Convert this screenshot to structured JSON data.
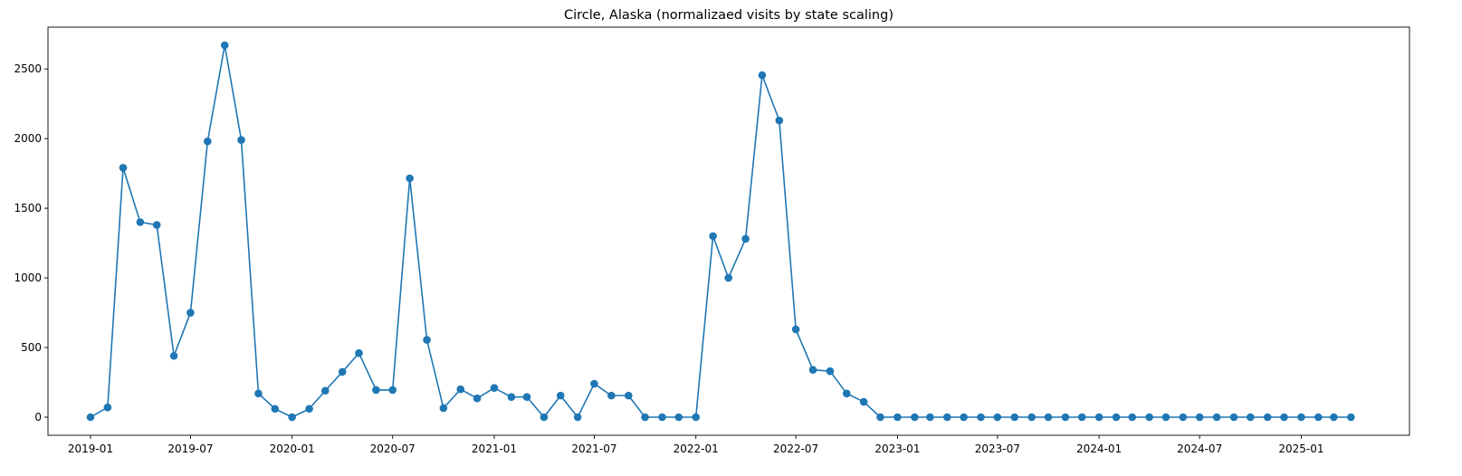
{
  "chart_data": {
    "type": "line",
    "title": "Circle, Alaska (normalizaed visits by state scaling)",
    "xlabel": "",
    "ylabel": "",
    "grid": false,
    "legend": "none",
    "markers": true,
    "color": "#1f77b4",
    "xlim": [
      "2018-10-16",
      "2025-07-16"
    ],
    "ylim": [
      -130,
      2800
    ],
    "x_ticks": [
      "2019-01",
      "2019-07",
      "2020-01",
      "2020-07",
      "2021-01",
      "2021-07",
      "2022-01",
      "2022-07",
      "2023-01",
      "2023-07",
      "2024-01",
      "2024-07",
      "2025-01"
    ],
    "y_ticks": [
      0,
      500,
      1000,
      1500,
      2000,
      2500
    ],
    "series": [
      {
        "x": [
          "2019-01",
          "2019-02",
          "2019-03",
          "2019-04",
          "2019-05",
          "2019-06",
          "2019-07",
          "2019-08",
          "2019-09",
          "2019-10",
          "2019-11",
          "2019-12",
          "2020-01",
          "2020-02",
          "2020-03",
          "2020-04",
          "2020-05",
          "2020-06",
          "2020-07",
          "2020-08",
          "2020-09",
          "2020-10",
          "2020-11",
          "2020-12",
          "2021-01",
          "2021-02",
          "2021-03",
          "2021-04",
          "2021-05",
          "2021-06",
          "2021-07",
          "2021-08",
          "2021-09",
          "2021-10",
          "2021-11",
          "2021-12",
          "2022-01",
          "2022-02",
          "2022-03",
          "2022-04",
          "2022-05",
          "2022-06",
          "2022-07",
          "2022-08",
          "2022-09",
          "2022-10",
          "2022-11",
          "2022-12",
          "2023-01",
          "2023-02",
          "2023-03",
          "2023-04",
          "2023-05",
          "2023-06",
          "2023-07",
          "2023-08",
          "2023-09",
          "2023-10",
          "2023-11",
          "2023-12",
          "2024-01",
          "2024-02",
          "2024-03",
          "2024-04",
          "2024-05",
          "2024-06",
          "2024-07",
          "2024-08",
          "2024-09",
          "2024-10",
          "2024-11",
          "2024-12",
          "2025-01",
          "2025-02",
          "2025-03",
          "2025-04"
        ],
        "values": [
          0,
          70,
          1790,
          1400,
          1380,
          440,
          750,
          1980,
          2670,
          1990,
          170,
          60,
          0,
          60,
          190,
          325,
          460,
          195,
          195,
          1715,
          555,
          65,
          200,
          135,
          210,
          145,
          145,
          0,
          155,
          0,
          240,
          155,
          155,
          0,
          0,
          0,
          0,
          1300,
          1000,
          1280,
          2455,
          2130,
          630,
          340,
          330,
          170,
          110,
          0,
          0,
          0,
          0,
          0,
          0,
          0,
          0,
          0,
          0,
          0,
          0,
          0,
          0,
          0,
          0,
          0,
          0,
          0,
          0,
          0,
          0,
          0,
          0,
          0,
          0,
          0,
          0,
          0
        ]
      }
    ]
  }
}
